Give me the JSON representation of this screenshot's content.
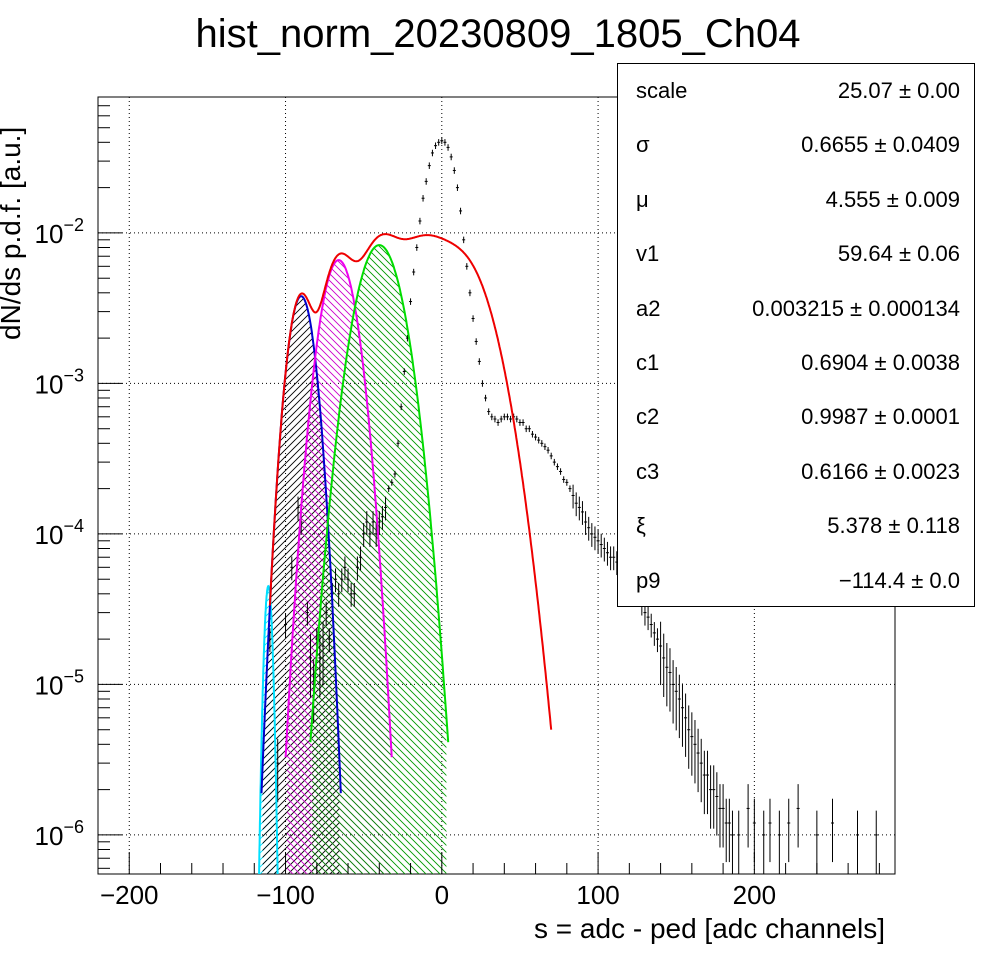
{
  "title": "hist_norm_20230809_1805_Ch04",
  "chart_data": {
    "type": "scatter",
    "title": "hist_norm_20230809_1805_Ch04",
    "xlabel": "s = adc - ped [adc channels]",
    "ylabel": "dN/ds p.d.f. [a.u.]",
    "xlim": [
      -220,
      290
    ],
    "ylim": [
      5.5e-07,
      0.08
    ],
    "yscale": "log",
    "grid": true,
    "x_ticks": [
      {
        "value": -200,
        "label": "−200"
      },
      {
        "value": -100,
        "label": "−100"
      },
      {
        "value": 0,
        "label": "0"
      },
      {
        "value": 100,
        "label": "100"
      },
      {
        "value": 200,
        "label": "200"
      }
    ],
    "y_ticks": [
      {
        "value": 1e-06,
        "base": "10",
        "exp": "−6"
      },
      {
        "value": 1e-05,
        "base": "10",
        "exp": "−5"
      },
      {
        "value": 0.0001,
        "base": "10",
        "exp": "−4"
      },
      {
        "value": 0.001,
        "base": "10",
        "exp": "−3"
      },
      {
        "value": 0.01,
        "base": "10",
        "exp": "−2"
      }
    ],
    "data_points": [
      [
        -110,
        2e-05
      ],
      [
        -105,
        3e-06
      ],
      [
        -100,
        2.5e-05
      ],
      [
        -96,
        6e-05
      ],
      [
        -92,
        0.00015
      ],
      [
        -90,
        0.00012
      ],
      [
        -86,
        3e-05
      ],
      [
        -84,
        1.5e-05
      ],
      [
        -82,
        1e-05
      ],
      [
        -80,
        2e-05
      ],
      [
        -78,
        1.5e-05
      ],
      [
        -76,
        1.8e-05
      ],
      [
        -74,
        3e-05
      ],
      [
        -72,
        2e-05
      ],
      [
        -70,
        4e-05
      ],
      [
        -68,
        5e-05
      ],
      [
        -66,
        4e-05
      ],
      [
        -64,
        5e-05
      ],
      [
        -62,
        6e-05
      ],
      [
        -60,
        5e-05
      ],
      [
        -58,
        4e-05
      ],
      [
        -56,
        4e-05
      ],
      [
        -54,
        6e-05
      ],
      [
        -52,
        7e-05
      ],
      [
        -50,
        0.0001
      ],
      [
        -48,
        0.00012
      ],
      [
        -46,
        0.0001
      ],
      [
        -44,
        0.00012
      ],
      [
        -42,
        0.0001
      ],
      [
        -40,
        0.00012
      ],
      [
        -38,
        0.00013
      ],
      [
        -36,
        0.00015
      ],
      [
        -34,
        0.0002
      ],
      [
        -32,
        0.00022
      ],
      [
        -30,
        0.00025
      ],
      [
        -28,
        0.0004
      ],
      [
        -26,
        0.0007
      ],
      [
        -24,
        0.0012
      ],
      [
        -22,
        0.002
      ],
      [
        -20,
        0.0035
      ],
      [
        -18,
        0.0055
      ],
      [
        -16,
        0.008
      ],
      [
        -14,
        0.012
      ],
      [
        -12,
        0.017
      ],
      [
        -10,
        0.022
      ],
      [
        -8,
        0.028
      ],
      [
        -6,
        0.034
      ],
      [
        -4,
        0.038
      ],
      [
        -2,
        0.04
      ],
      [
        0,
        0.041
      ],
      [
        2,
        0.04
      ],
      [
        4,
        0.037
      ],
      [
        6,
        0.032
      ],
      [
        8,
        0.026
      ],
      [
        10,
        0.02
      ],
      [
        12,
        0.014
      ],
      [
        14,
        0.009
      ],
      [
        16,
        0.006
      ],
      [
        18,
        0.004
      ],
      [
        20,
        0.0027
      ],
      [
        22,
        0.0019
      ],
      [
        24,
        0.0014
      ],
      [
        26,
        0.001
      ],
      [
        28,
        0.0008
      ],
      [
        30,
        0.00065
      ],
      [
        32,
        0.0006
      ],
      [
        34,
        0.00058
      ],
      [
        36,
        0.00055
      ],
      [
        38,
        0.00058
      ],
      [
        40,
        0.0006
      ],
      [
        42,
        0.0006
      ],
      [
        44,
        0.00058
      ],
      [
        46,
        0.0006
      ],
      [
        48,
        0.00058
      ],
      [
        50,
        0.00055
      ],
      [
        52,
        0.00055
      ],
      [
        54,
        0.0005
      ],
      [
        56,
        0.0005
      ],
      [
        58,
        0.00046
      ],
      [
        60,
        0.00044
      ],
      [
        62,
        0.00042
      ],
      [
        64,
        0.0004
      ],
      [
        66,
        0.00038
      ],
      [
        68,
        0.00036
      ],
      [
        70,
        0.00033
      ],
      [
        72,
        0.0003
      ],
      [
        74,
        0.00028
      ],
      [
        76,
        0.00026
      ],
      [
        78,
        0.00023
      ],
      [
        80,
        0.00022
      ],
      [
        82,
        0.0002
      ],
      [
        84,
        0.00018
      ],
      [
        86,
        0.00016
      ],
      [
        88,
        0.00015
      ],
      [
        90,
        0.00014
      ],
      [
        92,
        0.00012
      ],
      [
        94,
        0.00011
      ],
      [
        96,
        0.0001
      ],
      [
        98,
        9.5e-05
      ],
      [
        100,
        9e-05
      ],
      [
        102,
        8.5e-05
      ],
      [
        104,
        8e-05
      ],
      [
        106,
        7.5e-05
      ],
      [
        108,
        7e-05
      ],
      [
        110,
        7e-05
      ],
      [
        112,
        6.5e-05
      ],
      [
        114,
        6e-05
      ],
      [
        116,
        5.5e-05
      ],
      [
        118,
        5e-05
      ],
      [
        120,
        4.8e-05
      ],
      [
        122,
        4.5e-05
      ],
      [
        124,
        4.2e-05
      ],
      [
        126,
        4e-05
      ],
      [
        128,
        3.5e-05
      ],
      [
        130,
        3e-05
      ],
      [
        132,
        2.8e-05
      ],
      [
        134,
        2.5e-05
      ],
      [
        136,
        2.2e-05
      ],
      [
        138,
        2e-05
      ],
      [
        140,
        1.8e-05
      ],
      [
        142,
        1.5e-05
      ],
      [
        144,
        1.3e-05
      ],
      [
        146,
        1.2e-05
      ],
      [
        148,
        1e-05
      ],
      [
        150,
        9e-06
      ],
      [
        152,
        8e-06
      ],
      [
        154,
        7e-06
      ],
      [
        156,
        6e-06
      ],
      [
        158,
        5e-06
      ],
      [
        160,
        4.5e-06
      ],
      [
        162,
        4e-06
      ],
      [
        164,
        3.5e-06
      ],
      [
        166,
        3e-06
      ],
      [
        168,
        2.5e-06
      ],
      [
        170,
        2.5e-06
      ],
      [
        172,
        2e-06
      ],
      [
        174,
        2e-06
      ],
      [
        176,
        1.8e-06
      ],
      [
        178,
        1.5e-06
      ],
      [
        180,
        1.5e-06
      ],
      [
        182,
        1.2e-06
      ],
      [
        184,
        1.2e-06
      ],
      [
        186,
        1e-06
      ],
      [
        190,
        1e-06
      ],
      [
        196,
        1.5e-06
      ],
      [
        200,
        1.2e-06
      ],
      [
        206,
        1e-06
      ],
      [
        210,
        1.2e-06
      ],
      [
        216,
        1e-06
      ],
      [
        222,
        1.2e-06
      ],
      [
        228,
        1.5e-06
      ],
      [
        240,
        1e-06
      ],
      [
        250,
        1.2e-06
      ],
      [
        266,
        1e-06
      ],
      [
        278,
        1e-06
      ]
    ],
    "components": [
      {
        "color": "#00e0ff",
        "fill": "none",
        "hatch": "right",
        "mu": -111,
        "sigma": 2.0,
        "amp": 4.5e-05
      },
      {
        "color": "#0000cc",
        "fill": "#000000",
        "hatch": "right",
        "mu": -90,
        "sigma": 6.5,
        "amp": 0.0038
      },
      {
        "color": "#ee00ee",
        "fill": "#cc00cc",
        "hatch": "left",
        "mu": -66,
        "sigma": 8.7,
        "amp": 0.0066
      },
      {
        "color": "#00dd00",
        "fill": "#009900",
        "hatch": "left",
        "mu": -40,
        "sigma": 11.3,
        "amp": 0.0083
      }
    ],
    "fit_curve": {
      "color": "#ee0000",
      "peaks": [
        {
          "mu": -90,
          "sigma": 6.5,
          "amp": 0.0038
        },
        {
          "mu": -66,
          "sigma": 8.7,
          "amp": 0.0066
        },
        {
          "mu": -40,
          "sigma": 11.3,
          "amp": 0.0083
        },
        {
          "mu": -14,
          "sigma": 13.5,
          "amp": 0.0074
        },
        {
          "mu": 12,
          "sigma": 15.3,
          "amp": 0.0066
        }
      ]
    }
  },
  "stats": [
    {
      "name": "scale",
      "value": "25.07 ± 0.00"
    },
    {
      "name": "σ",
      "value": "0.6655 ± 0.0409"
    },
    {
      "name": "μ",
      "value": "4.555 ± 0.009"
    },
    {
      "name": "v1",
      "value": "59.64 ± 0.06"
    },
    {
      "name": "a2",
      "value": "0.003215 ± 0.000134"
    },
    {
      "name": "c1",
      "value": "0.6904 ± 0.0038"
    },
    {
      "name": "c2",
      "value": "0.9987 ± 0.0001"
    },
    {
      "name": "c3",
      "value": "0.6166 ± 0.0023"
    },
    {
      "name": "ξ",
      "value": "5.378 ± 0.118"
    },
    {
      "name": "p9",
      "value": "−114.4 ± 0.0"
    }
  ]
}
